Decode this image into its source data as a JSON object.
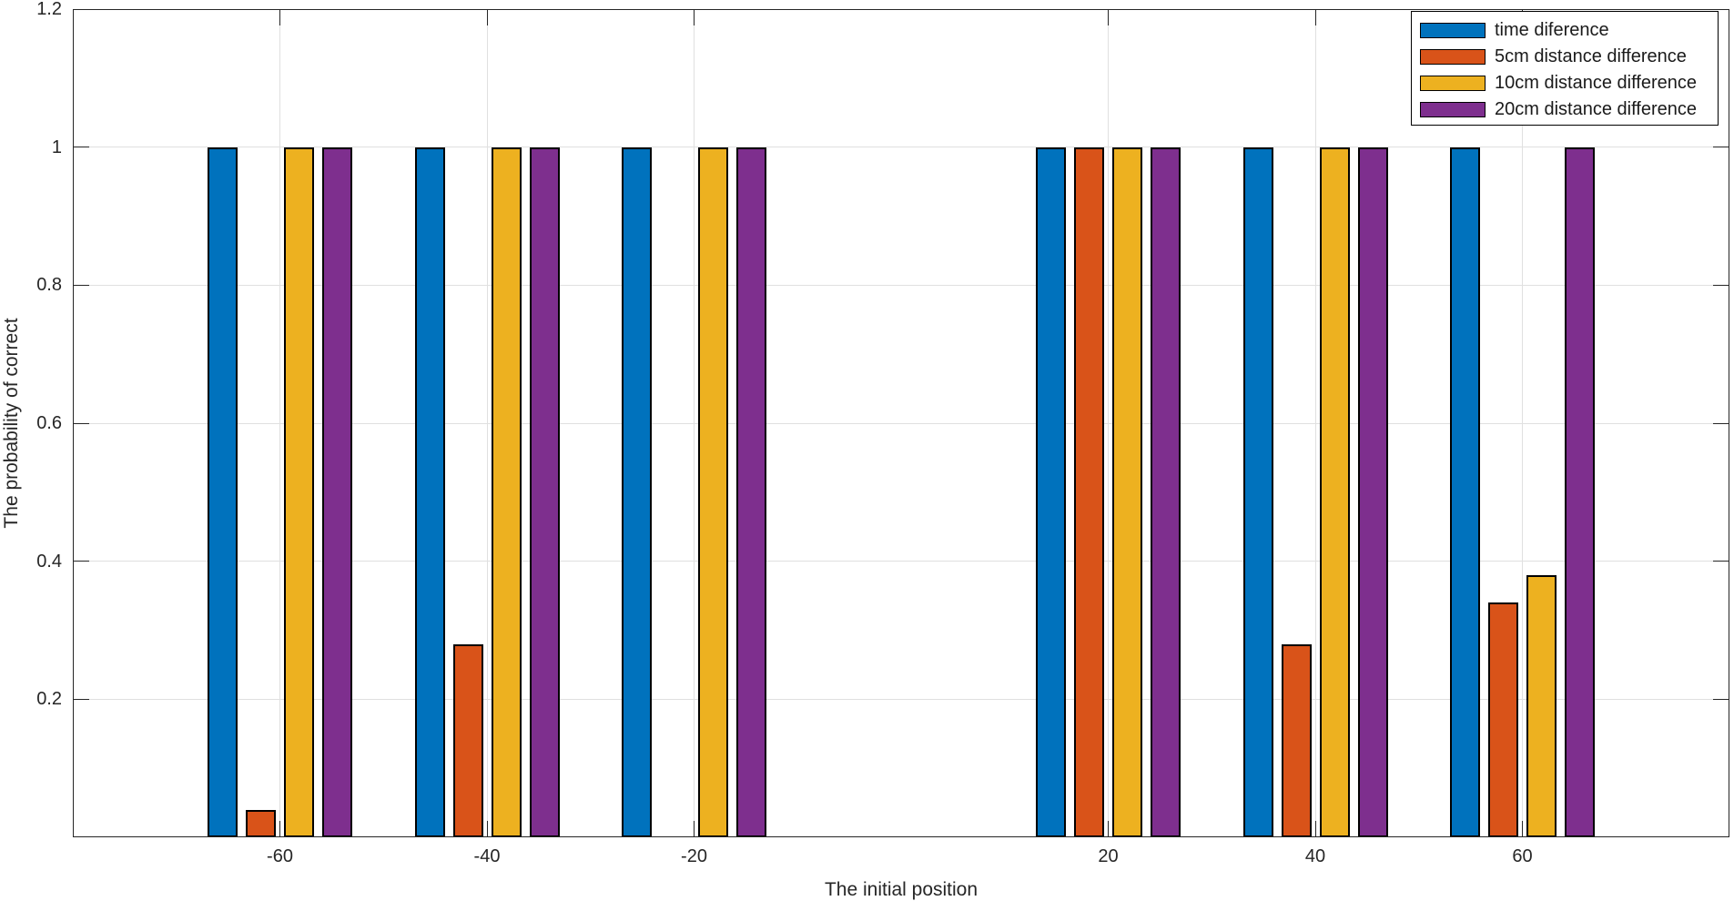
{
  "chart_data": {
    "type": "bar",
    "title": "",
    "xlabel": "The initial position",
    "ylabel": "The probability of correct",
    "categories": [
      -60,
      -40,
      -20,
      20,
      40,
      60
    ],
    "x_tick_labels": [
      "-60",
      "-40",
      "-20",
      "20",
      "40",
      "60"
    ],
    "y_ticks": [
      0.2,
      0.4,
      0.6,
      0.8,
      1,
      1.2
    ],
    "y_tick_labels": [
      "0.2",
      "0.4",
      "0.6",
      "0.8",
      "1",
      "1.2"
    ],
    "xlim": [
      -80,
      80
    ],
    "ylim": [
      0,
      1.2
    ],
    "grid": true,
    "legend_position": "top-right",
    "series": [
      {
        "name": "time diference",
        "color": "#0072BD",
        "values": [
          1,
          1,
          1,
          1,
          1,
          1
        ]
      },
      {
        "name": "5cm distance difference",
        "color": "#D95319",
        "values": [
          0.04,
          0.28,
          0,
          1,
          0.28,
          0.34
        ]
      },
      {
        "name": "10cm distance difference",
        "color": "#EDB120",
        "values": [
          1,
          1,
          1,
          1,
          1,
          0.38
        ]
      },
      {
        "name": "20cm distance difference",
        "color": "#7E2F8E",
        "values": [
          1,
          1,
          1,
          1,
          1,
          1
        ]
      }
    ],
    "style": {
      "axis_color": "#262626",
      "grid_color": "#e0e0e0",
      "bar_edge_color": "#000000",
      "background": "#ffffff"
    }
  }
}
